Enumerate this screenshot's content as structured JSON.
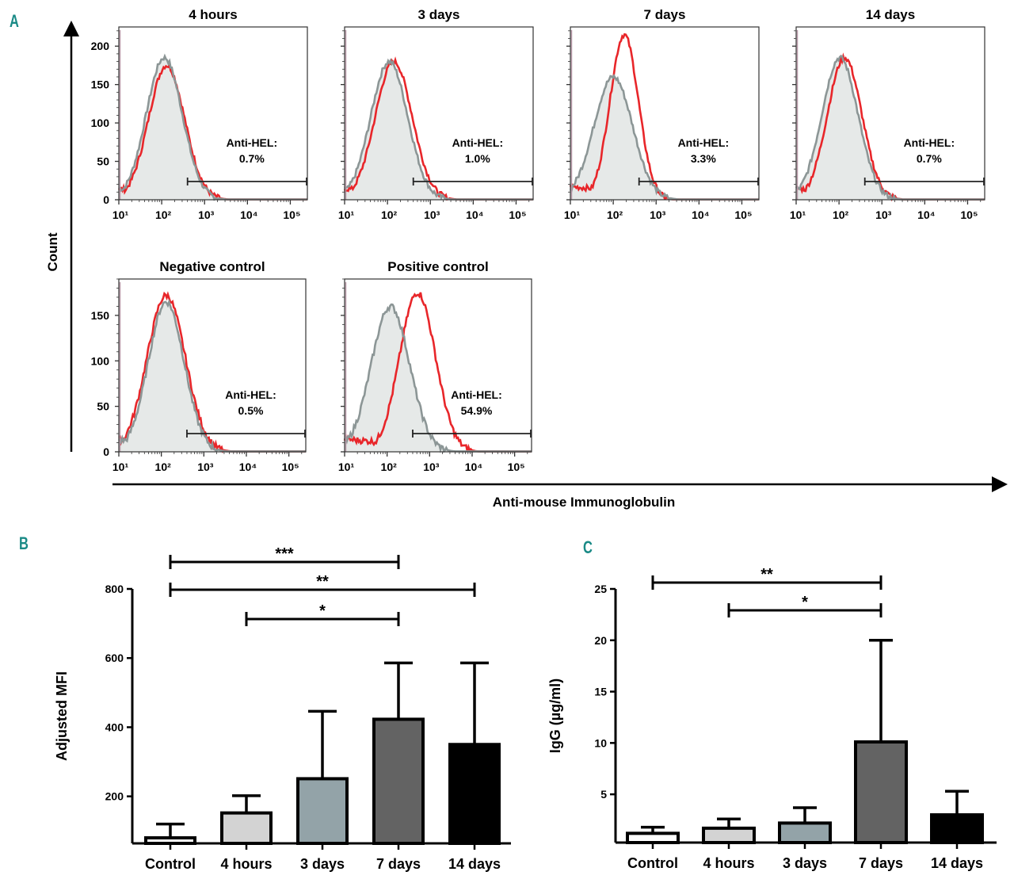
{
  "panel_labels": {
    "a": "A",
    "b": "B",
    "c": "C"
  },
  "panel_a": {
    "y_axis_label": "Count",
    "x_axis_label": "Anti-mouse Immunoglobulin",
    "x_tick_labels": [
      "10¹",
      "10²",
      "10³",
      "10⁴",
      "10⁵"
    ],
    "gate_label": "Anti-HEL:",
    "colors": {
      "sample": "#e8262a",
      "control": "#8c9696",
      "control_fill": "#e6e9e8"
    }
  },
  "chart_data": [
    {
      "type": "histogram-overlay",
      "title": "4 hours",
      "xlabel": "Anti-mouse Immunoglobulin",
      "ylabel": "Count",
      "x_scale": "log10",
      "xlim": [
        10,
        250000
      ],
      "ylim": [
        0,
        225
      ],
      "y_ticks": [
        0,
        50,
        100,
        150,
        200
      ],
      "show_y_tick_labels": true,
      "gate_percent": "0.7%",
      "gate_range": [
        400,
        250000
      ],
      "series": [
        {
          "name": "control",
          "peak_x": 115,
          "peak_count": 185,
          "log_sd": 0.42
        },
        {
          "name": "sample",
          "peak_x": 130,
          "peak_count": 175,
          "log_sd": 0.42
        }
      ]
    },
    {
      "type": "histogram-overlay",
      "title": "3 days",
      "x_scale": "log10",
      "xlim": [
        10,
        250000
      ],
      "ylim": [
        0,
        225
      ],
      "y_ticks": [
        0,
        50,
        100,
        150,
        200
      ],
      "show_y_tick_labels": false,
      "gate_percent": "1.0%",
      "gate_range": [
        400,
        250000
      ],
      "series": [
        {
          "name": "control",
          "peak_x": 110,
          "peak_count": 180,
          "log_sd": 0.43
        },
        {
          "name": "sample",
          "peak_x": 140,
          "peak_count": 180,
          "log_sd": 0.43
        }
      ]
    },
    {
      "type": "histogram-overlay",
      "title": "7 days",
      "x_scale": "log10",
      "xlim": [
        10,
        250000
      ],
      "ylim": [
        0,
        225
      ],
      "y_ticks": [
        0,
        50,
        100,
        150,
        200
      ],
      "show_y_tick_labels": false,
      "gate_percent": "3.3%",
      "gate_range": [
        400,
        250000
      ],
      "series": [
        {
          "name": "control",
          "peak_x": 100,
          "peak_count": 160,
          "log_sd": 0.45
        },
        {
          "name": "sample",
          "peak_x": 180,
          "peak_count": 215,
          "log_sd": 0.33
        }
      ]
    },
    {
      "type": "histogram-overlay",
      "title": "14 days",
      "x_scale": "log10",
      "xlim": [
        10,
        250000
      ],
      "ylim": [
        0,
        225
      ],
      "y_ticks": [
        0,
        50,
        100,
        150,
        200
      ],
      "show_y_tick_labels": false,
      "gate_percent": "0.7%",
      "gate_range": [
        400,
        250000
      ],
      "series": [
        {
          "name": "control",
          "peak_x": 105,
          "peak_count": 185,
          "log_sd": 0.42
        },
        {
          "name": "sample",
          "peak_x": 135,
          "peak_count": 185,
          "log_sd": 0.4
        }
      ]
    },
    {
      "type": "histogram-overlay",
      "title": "Negative control",
      "x_scale": "log10",
      "xlim": [
        10,
        250000
      ],
      "ylim": [
        0,
        190
      ],
      "y_ticks": [
        0,
        50,
        100,
        150
      ],
      "show_y_tick_labels": true,
      "gate_percent": "0.5%",
      "gate_range": [
        400,
        250000
      ],
      "series": [
        {
          "name": "control",
          "peak_x": 130,
          "peak_count": 165,
          "log_sd": 0.42
        },
        {
          "name": "sample",
          "peak_x": 130,
          "peak_count": 172,
          "log_sd": 0.45
        }
      ]
    },
    {
      "type": "histogram-overlay",
      "title": "Positive control",
      "x_scale": "log10",
      "xlim": [
        10,
        250000
      ],
      "ylim": [
        0,
        190
      ],
      "y_ticks": [
        0,
        50,
        100,
        150
      ],
      "show_y_tick_labels": false,
      "gate_percent": "54.9%",
      "gate_range": [
        400,
        250000
      ],
      "series": [
        {
          "name": "control",
          "peak_x": 120,
          "peak_count": 160,
          "log_sd": 0.45
        },
        {
          "name": "sample",
          "peak_x": 520,
          "peak_count": 175,
          "log_sd": 0.42
        }
      ]
    },
    {
      "type": "bar",
      "panel": "B",
      "title": "",
      "xlabel": "",
      "ylabel": "Adjusted MFI",
      "categories": [
        "Control",
        "4 hours",
        "3 days",
        "7 days",
        "14 days"
      ],
      "values": [
        80,
        152,
        251,
        423,
        350
      ],
      "error_upper": [
        120,
        202,
        446,
        586,
        586
      ],
      "bar_colors": [
        "#ffffff",
        "#d3d3d3",
        "#93a3a8",
        "#636363",
        "#000000"
      ],
      "y_ticks": [
        200,
        400,
        600,
        800
      ],
      "ylim": [
        64,
        800
      ],
      "significance": [
        {
          "from": "Control",
          "to": "7 days",
          "label": "***"
        },
        {
          "from": "Control",
          "to": "14 days",
          "label": "**"
        },
        {
          "from": "4 hours",
          "to": "7 days",
          "label": "*"
        }
      ]
    },
    {
      "type": "bar",
      "panel": "C",
      "title": "",
      "xlabel": "",
      "ylabel": "IgG (µg/ml)",
      "categories": [
        "Control",
        "4 hours",
        "3 days",
        "7 days",
        "14 days"
      ],
      "values": [
        1.2,
        1.7,
        2.2,
        10.1,
        3.0
      ],
      "error_upper": [
        1.8,
        2.6,
        3.7,
        20.0,
        5.3
      ],
      "bar_colors": [
        "#ffffff",
        "#d3d3d3",
        "#93a3a8",
        "#636363",
        "#000000"
      ],
      "y_ticks": [
        5,
        10,
        15,
        20,
        25
      ],
      "ylim": [
        0.3,
        25
      ],
      "significance": [
        {
          "from": "Control",
          "to": "7 days",
          "label": "**"
        },
        {
          "from": "4 hours",
          "to": "7 days",
          "label": "*"
        }
      ]
    }
  ]
}
